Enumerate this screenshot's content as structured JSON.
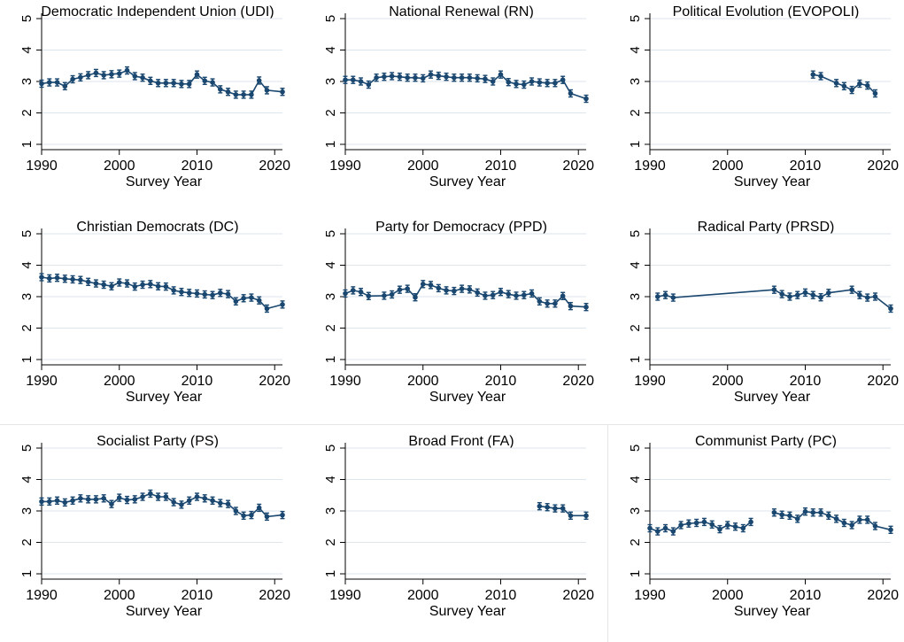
{
  "colors": {
    "line": "#1a476f",
    "grid": "#dde6ec",
    "axis": "#000000"
  },
  "chart_data": [
    {
      "type": "line",
      "title": "Democratic Independent Union (UDI)",
      "xlabel": "Survey Year",
      "ylabel": "",
      "xlim": [
        1990,
        2021
      ],
      "ylim": [
        1,
        5
      ],
      "xticks": [
        "1990",
        "2000",
        "2010",
        "2020"
      ],
      "yticks": [
        "1",
        "2",
        "3",
        "4",
        "5"
      ],
      "segments": [
        {
          "x": [
            1990,
            1991,
            1992,
            1993,
            1994,
            1995,
            1996,
            1997,
            1998,
            1999,
            2000,
            2001,
            2002,
            2003,
            2004,
            2005,
            2006,
            2007,
            2008,
            2009,
            2010,
            2011,
            2012,
            2013,
            2014,
            2015,
            2016,
            2017,
            2018,
            2019,
            2021
          ],
          "y": [
            2.93,
            2.97,
            2.97,
            2.85,
            3.07,
            3.13,
            3.2,
            3.27,
            3.2,
            3.23,
            3.25,
            3.35,
            3.17,
            3.12,
            3.02,
            2.95,
            2.95,
            2.95,
            2.92,
            2.92,
            3.22,
            3.02,
            2.97,
            2.75,
            2.67,
            2.58,
            2.58,
            2.58,
            3.03,
            2.72,
            2.67
          ]
        }
      ]
    },
    {
      "type": "line",
      "title": "National Renewal (RN)",
      "xlabel": "Survey Year",
      "ylabel": "",
      "xlim": [
        1990,
        2021
      ],
      "ylim": [
        1,
        5
      ],
      "xticks": [
        "1990",
        "2000",
        "2010",
        "2020"
      ],
      "yticks": [
        "1",
        "2",
        "3",
        "4",
        "5"
      ],
      "segments": [
        {
          "x": [
            1990,
            1991,
            1992,
            1993,
            1994,
            1995,
            1996,
            1997,
            1998,
            1999,
            2000,
            2001,
            2002,
            2003,
            2004,
            2005,
            2006,
            2007,
            2008,
            2009,
            2010,
            2011,
            2012,
            2013,
            2014,
            2015,
            2016,
            2017,
            2018,
            2019,
            2021
          ],
          "y": [
            3.05,
            3.05,
            3.0,
            2.9,
            3.12,
            3.15,
            3.17,
            3.15,
            3.12,
            3.12,
            3.1,
            3.22,
            3.18,
            3.15,
            3.12,
            3.12,
            3.12,
            3.1,
            3.08,
            3.0,
            3.22,
            2.98,
            2.92,
            2.9,
            3.0,
            2.97,
            2.95,
            2.95,
            3.05,
            2.62,
            2.45
          ]
        }
      ]
    },
    {
      "type": "line",
      "title": "Political Evolution (EVOPOLI)",
      "xlabel": "Survey Year",
      "ylabel": "",
      "xlim": [
        1990,
        2021
      ],
      "ylim": [
        1,
        5
      ],
      "xticks": [
        "1990",
        "2000",
        "2010",
        "2020"
      ],
      "yticks": [
        "1",
        "2",
        "3",
        "4",
        "5"
      ],
      "segments": [
        {
          "x": [
            2011,
            2012,
            2014,
            2015,
            2016,
            2017,
            2018,
            2019
          ],
          "y": [
            3.22,
            3.17,
            2.95,
            2.85,
            2.73,
            2.93,
            2.87,
            2.62
          ]
        }
      ]
    },
    {
      "type": "line",
      "title": "Christian Democrats (DC)",
      "xlabel": "Survey Year",
      "ylabel": "",
      "xlim": [
        1990,
        2021
      ],
      "ylim": [
        1,
        5
      ],
      "xticks": [
        "1990",
        "2000",
        "2010",
        "2020"
      ],
      "yticks": [
        "1",
        "2",
        "3",
        "4",
        "5"
      ],
      "segments": [
        {
          "x": [
            1990,
            1991,
            1992,
            1993,
            1994,
            1995,
            1996,
            1997,
            1998,
            1999,
            2000,
            2001,
            2002,
            2003,
            2004,
            2005,
            2006,
            2007,
            2008,
            2009,
            2010,
            2011,
            2012,
            2013,
            2014,
            2015,
            2016,
            2017,
            2018,
            2019,
            2021
          ],
          "y": [
            3.62,
            3.58,
            3.6,
            3.57,
            3.55,
            3.53,
            3.47,
            3.42,
            3.38,
            3.33,
            3.45,
            3.42,
            3.32,
            3.38,
            3.4,
            3.33,
            3.32,
            3.2,
            3.15,
            3.12,
            3.1,
            3.07,
            3.05,
            3.12,
            3.08,
            2.85,
            2.95,
            2.97,
            2.88,
            2.62,
            2.75
          ]
        }
      ]
    },
    {
      "type": "line",
      "title": "Party for Democracy (PPD)",
      "xlabel": "Survey Year",
      "ylabel": "",
      "xlim": [
        1990,
        2021
      ],
      "ylim": [
        1,
        5
      ],
      "xticks": [
        "1990",
        "2000",
        "2010",
        "2020"
      ],
      "yticks": [
        "1",
        "2",
        "3",
        "4",
        "5"
      ],
      "segments": [
        {
          "x": [
            1990,
            1991,
            1992,
            1993,
            1995,
            1996,
            1997,
            1998,
            1999,
            2000,
            2001,
            2002,
            2003,
            2004,
            2005,
            2006,
            2007,
            2008,
            2009,
            2010,
            2011,
            2012,
            2013,
            2014,
            2015,
            2016,
            2017,
            2018,
            2019,
            2021
          ],
          "y": [
            3.1,
            3.2,
            3.15,
            3.02,
            3.03,
            3.07,
            3.22,
            3.25,
            2.98,
            3.4,
            3.37,
            3.27,
            3.2,
            3.18,
            3.25,
            3.23,
            3.13,
            3.03,
            3.05,
            3.15,
            3.08,
            3.03,
            3.05,
            3.1,
            2.85,
            2.78,
            2.78,
            3.02,
            2.7,
            2.67
          ]
        }
      ]
    },
    {
      "type": "line",
      "title": "Radical Party (PRSD)",
      "xlabel": "Survey Year",
      "ylabel": "",
      "xlim": [
        1990,
        2021
      ],
      "ylim": [
        1,
        5
      ],
      "xticks": [
        "1990",
        "2000",
        "2010",
        "2020"
      ],
      "yticks": [
        "1",
        "2",
        "3",
        "4",
        "5"
      ],
      "segments": [
        {
          "x": [
            1991,
            1992,
            1993,
            2006,
            2007,
            2008,
            2009,
            2010,
            2011,
            2012,
            2013,
            2016,
            2017,
            2018,
            2019,
            2021
          ],
          "y": [
            3.0,
            3.05,
            2.97,
            3.22,
            3.08,
            3.0,
            3.05,
            3.13,
            3.05,
            2.98,
            3.12,
            3.22,
            3.05,
            2.97,
            3.0,
            2.62
          ]
        }
      ]
    },
    {
      "type": "line",
      "title": "Socialist Party (PS)",
      "xlabel": "Survey Year",
      "ylabel": "",
      "xlim": [
        1990,
        2021
      ],
      "ylim": [
        1,
        5
      ],
      "xticks": [
        "1990",
        "2000",
        "2010",
        "2020"
      ],
      "yticks": [
        "1",
        "2",
        "3",
        "4",
        "5"
      ],
      "segments": [
        {
          "x": [
            1990,
            1991,
            1992,
            1993,
            1994,
            1995,
            1996,
            1997,
            1998,
            1999,
            2000,
            2001,
            2002,
            2003,
            2004,
            2005,
            2006,
            2007,
            2008,
            2009,
            2010,
            2011,
            2012,
            2013,
            2014,
            2015,
            2016,
            2017,
            2018,
            2019,
            2021
          ],
          "y": [
            3.3,
            3.3,
            3.33,
            3.27,
            3.33,
            3.4,
            3.37,
            3.37,
            3.4,
            3.22,
            3.42,
            3.35,
            3.37,
            3.45,
            3.55,
            3.45,
            3.45,
            3.28,
            3.2,
            3.33,
            3.45,
            3.4,
            3.33,
            3.25,
            3.22,
            3.0,
            2.85,
            2.87,
            3.1,
            2.82,
            2.87
          ]
        }
      ]
    },
    {
      "type": "line",
      "title": "Broad Front (FA)",
      "xlabel": "Survey Year",
      "ylabel": "",
      "xlim": [
        1990,
        2021
      ],
      "ylim": [
        1,
        5
      ],
      "xticks": [
        "1990",
        "2000",
        "2010",
        "2020"
      ],
      "yticks": [
        "1",
        "2",
        "3",
        "4",
        "5"
      ],
      "segments": [
        {
          "x": [
            2015,
            2016,
            2017,
            2018,
            2019,
            2021
          ],
          "y": [
            3.15,
            3.12,
            3.08,
            3.08,
            2.85,
            2.85
          ]
        }
      ]
    },
    {
      "type": "line",
      "title": "Communist Party (PC)",
      "xlabel": "Survey Year",
      "ylabel": "",
      "xlim": [
        1990,
        2021
      ],
      "ylim": [
        1,
        5
      ],
      "xticks": [
        "1990",
        "2000",
        "2010",
        "2020"
      ],
      "yticks": [
        "1",
        "2",
        "3",
        "4",
        "5"
      ],
      "segments": [
        {
          "x": [
            1990,
            1991,
            1992,
            1993,
            1994,
            1995,
            1996,
            1997,
            1998,
            1999,
            2000,
            2001,
            2002,
            2003
          ],
          "y": [
            2.45,
            2.35,
            2.45,
            2.35,
            2.55,
            2.6,
            2.62,
            2.65,
            2.57,
            2.42,
            2.55,
            2.5,
            2.45,
            2.65
          ]
        },
        {
          "x": [
            2006,
            2007,
            2008,
            2009,
            2010,
            2011,
            2012,
            2013,
            2014,
            2015,
            2016,
            2017,
            2018,
            2019,
            2021
          ],
          "y": [
            2.95,
            2.88,
            2.85,
            2.75,
            2.98,
            2.95,
            2.95,
            2.85,
            2.75,
            2.62,
            2.55,
            2.72,
            2.72,
            2.52,
            2.4
          ]
        }
      ]
    }
  ]
}
